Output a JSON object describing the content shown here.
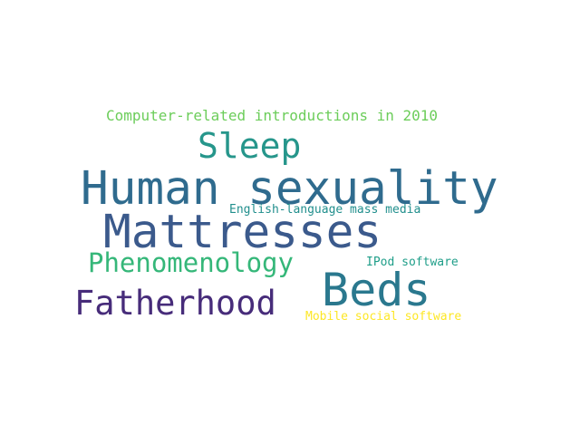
{
  "words": [
    {
      "text": "Computer-related introductions in 2010",
      "color": "#6ccd5a"
    },
    {
      "text": "Sleep",
      "color": "#26968b"
    },
    {
      "text": "Human sexuality",
      "color": "#2f6b8e"
    },
    {
      "text": "English-language mass media",
      "color": "#218f8d"
    },
    {
      "text": "Mattresses",
      "color": "#3b5a8c"
    },
    {
      "text": "Phenomenology",
      "color": "#35b779"
    },
    {
      "text": "IPod software",
      "color": "#1f9e89"
    },
    {
      "text": "Beds",
      "color": "#2a788e"
    },
    {
      "text": "Fatherhood",
      "color": "#472c7a"
    },
    {
      "text": "Mobile social software",
      "color": "#fde725"
    }
  ]
}
